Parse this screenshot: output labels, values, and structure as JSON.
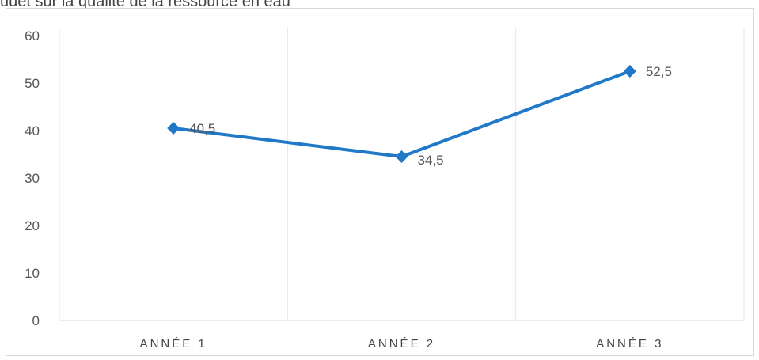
{
  "caption": "uuet sur la qualite de la ressource en eau",
  "chart_data": {
    "type": "line",
    "categories": [
      "ANNÉE 1",
      "ANNÉE 2",
      "ANNÉE 3"
    ],
    "series": [
      {
        "values": [
          40.5,
          34.5,
          52.5
        ],
        "value_labels": [
          "40,5",
          "34,5",
          "52,5"
        ]
      }
    ],
    "ylim": [
      0,
      60
    ],
    "yticks": [
      "0",
      "10",
      "20",
      "30",
      "40",
      "50",
      "60"
    ],
    "grid": "vertical",
    "legend": "none",
    "line_color": "#1f78c8",
    "marker": "diamond"
  }
}
